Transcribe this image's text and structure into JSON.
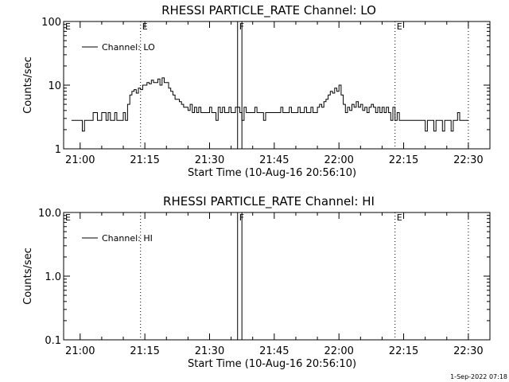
{
  "footer": {
    "timestamp": "1-Sep-2022 07:18"
  },
  "chart_data": [
    {
      "type": "line",
      "title": "RHESSI PARTICLE_RATE  Channel: LO",
      "xlabel": "Start Time (10-Aug-16 20:56:10)",
      "ylabel": "Counts/sec",
      "yscale": "log",
      "ylim": [
        1,
        100
      ],
      "yticks": [
        1,
        10,
        100
      ],
      "ytick_labels": [
        "1",
        "10",
        "100"
      ],
      "xlim": [
        "20:56:10",
        "22:35:00"
      ],
      "xticks": [
        "21:00",
        "21:15",
        "21:30",
        "21:45",
        "22:00",
        "22:15",
        "22:30"
      ],
      "legend": {
        "label": "Channel: LO",
        "position": "top-left"
      },
      "markers": [
        {
          "time": "21:14:00",
          "label": "E",
          "style": "dotted"
        },
        {
          "time": "21:36:30",
          "label": "F",
          "style": "solid"
        },
        {
          "time": "21:37:30",
          "label": "",
          "style": "solid"
        },
        {
          "time": "22:13:00",
          "label": "E",
          "style": "dotted"
        },
        {
          "time": "22:30:00",
          "label": "",
          "style": "dotted"
        }
      ],
      "edge_labels": [
        {
          "time": "20:56:10",
          "label": "E"
        }
      ],
      "series": [
        {
          "name": "Channel: LO",
          "step": true,
          "x": [
            "20:58:00",
            "21:00:00",
            "21:00:30",
            "21:01:00",
            "21:02:00",
            "21:02:30",
            "21:03:00",
            "21:04:00",
            "21:04:30",
            "21:05:00",
            "21:06:00",
            "21:06:30",
            "21:07:00",
            "21:08:00",
            "21:08:30",
            "21:09:00",
            "21:10:00",
            "21:10:30",
            "21:11:00",
            "21:11:30",
            "21:12:00",
            "21:12:30",
            "21:13:00",
            "21:13:30",
            "21:14:00",
            "21:14:30",
            "21:15:00",
            "21:15:30",
            "21:16:00",
            "21:16:30",
            "21:17:00",
            "21:17:30",
            "21:18:00",
            "21:18:30",
            "21:19:00",
            "21:19:30",
            "21:20:00",
            "21:20:30",
            "21:21:00",
            "21:21:30",
            "21:22:00",
            "21:22:30",
            "21:23:00",
            "21:23:30",
            "21:24:00",
            "21:24:30",
            "21:25:00",
            "21:25:30",
            "21:26:00",
            "21:26:30",
            "21:27:00",
            "21:27:30",
            "21:28:00",
            "21:28:30",
            "21:29:00",
            "21:29:30",
            "21:30:00",
            "21:30:30",
            "21:31:00",
            "21:31:30",
            "21:32:00",
            "21:32:30",
            "21:33:00",
            "21:33:30",
            "21:34:00",
            "21:34:30",
            "21:35:00",
            "21:36:00",
            "21:37:00",
            "21:37:30",
            "21:38:00",
            "21:38:30",
            "21:39:00",
            "21:40:00",
            "21:40:30",
            "21:41:00",
            "21:42:00",
            "21:42:30",
            "21:43:00",
            "21:44:00",
            "21:45:00",
            "21:46:00",
            "21:46:30",
            "21:47:00",
            "21:48:00",
            "21:48:30",
            "21:49:00",
            "21:50:00",
            "21:50:30",
            "21:51:00",
            "21:52:00",
            "21:52:30",
            "21:53:00",
            "21:53:30",
            "21:54:00",
            "21:54:30",
            "21:55:00",
            "21:55:30",
            "21:56:00",
            "21:56:30",
            "21:57:00",
            "21:57:30",
            "21:58:00",
            "21:58:30",
            "21:59:00",
            "21:59:30",
            "22:00:00",
            "22:00:30",
            "22:01:00",
            "22:01:30",
            "22:02:00",
            "22:02:30",
            "22:03:00",
            "22:03:30",
            "22:04:00",
            "22:04:30",
            "22:05:00",
            "22:05:30",
            "22:06:00",
            "22:06:30",
            "22:07:00",
            "22:07:30",
            "22:08:00",
            "22:08:30",
            "22:09:00",
            "22:09:30",
            "22:10:00",
            "22:10:30",
            "22:11:00",
            "22:11:30",
            "22:12:00",
            "22:12:30",
            "22:13:00",
            "22:13:30",
            "22:14:00",
            "22:15:00",
            "22:16:00",
            "22:17:00",
            "22:18:00",
            "22:19:00",
            "22:19:30",
            "22:20:00",
            "22:20:30",
            "22:21:00",
            "22:22:00",
            "22:22:30",
            "22:23:00",
            "22:24:00",
            "22:24:30",
            "22:25:00",
            "22:26:00",
            "22:26:30",
            "22:27:00",
            "22:27:30",
            "22:28:00",
            "22:29:00"
          ],
          "y": [
            2.8,
            2.8,
            1.9,
            2.8,
            2.8,
            2.8,
            3.7,
            2.8,
            2.8,
            3.7,
            2.8,
            3.7,
            2.8,
            3.7,
            2.8,
            2.8,
            3.7,
            2.8,
            5,
            7,
            8,
            8.5,
            7.5,
            9,
            8.5,
            10,
            10,
            11,
            10.5,
            12,
            11,
            11,
            12.5,
            10,
            13,
            11,
            11,
            9,
            8,
            7,
            6,
            6,
            5.5,
            5,
            4.5,
            4.5,
            4,
            5,
            3.7,
            4.5,
            3.7,
            4.5,
            3.7,
            3.7,
            3.7,
            3.7,
            4.5,
            3.7,
            3.7,
            2.8,
            4.5,
            3.7,
            4.5,
            3.7,
            3.7,
            4.5,
            3.7,
            4.5,
            3.7,
            2.8,
            4.5,
            3.7,
            3.7,
            3.7,
            4.5,
            3.7,
            3.7,
            2.8,
            3.7,
            3.7,
            3.7,
            3.7,
            4.5,
            3.7,
            3.7,
            4.5,
            3.7,
            3.7,
            4.5,
            3.7,
            4.5,
            3.7,
            3.7,
            4.5,
            3.7,
            3.7,
            4.5,
            5,
            4.5,
            5.5,
            6,
            7,
            8,
            7.5,
            9,
            8,
            10,
            7,
            5,
            3.7,
            4.5,
            4,
            5,
            4.5,
            5.5,
            4.5,
            5,
            4,
            4.5,
            3.7,
            4.5,
            5,
            4.5,
            3.7,
            4.5,
            3.7,
            4.5,
            3.7,
            4.5,
            3.7,
            2.8,
            4.5,
            2.8,
            3.7,
            2.8,
            2.8,
            2.8,
            2.8,
            2.8,
            2.8,
            2.8,
            1.9,
            2.8,
            2.8,
            1.9,
            2.8,
            2.8,
            1.9,
            2.8,
            2.8,
            1.9,
            2.8,
            2.8,
            3.7,
            2.8,
            2.8
          ]
        }
      ]
    },
    {
      "type": "line",
      "title": "RHESSI PARTICLE_RATE  Channel: HI",
      "xlabel": "Start Time (10-Aug-16 20:56:10)",
      "ylabel": "Counts/sec",
      "yscale": "log",
      "ylim": [
        0.1,
        10
      ],
      "yticks": [
        0.1,
        1,
        10
      ],
      "ytick_labels": [
        "0.1",
        "1.0",
        "10.0"
      ],
      "xlim": [
        "20:56:10",
        "22:35:00"
      ],
      "xticks": [
        "21:00",
        "21:15",
        "21:30",
        "21:45",
        "22:00",
        "22:15",
        "22:30"
      ],
      "legend": {
        "label": "Channel: HI",
        "position": "top-left"
      },
      "markers": [
        {
          "time": "21:14:00",
          "label": "",
          "style": "dotted"
        },
        {
          "time": "21:36:30",
          "label": "F",
          "style": "solid"
        },
        {
          "time": "21:37:30",
          "label": "",
          "style": "solid"
        },
        {
          "time": "22:13:00",
          "label": "E",
          "style": "dotted"
        },
        {
          "time": "22:30:00",
          "label": "",
          "style": "dotted"
        }
      ],
      "edge_labels": [
        {
          "time": "20:56:10",
          "label": "E"
        }
      ],
      "series": []
    }
  ]
}
